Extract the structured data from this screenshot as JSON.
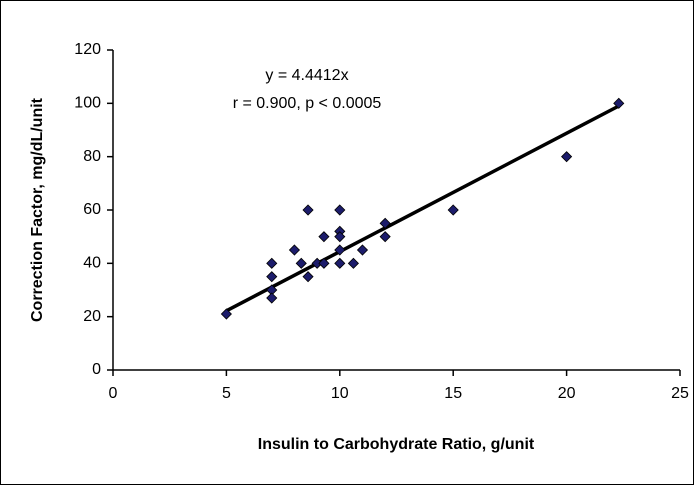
{
  "chart_data": {
    "type": "scatter",
    "x_label": "Insulin to Carbohydrate Ratio, g/unit",
    "y_label": "Correction Factor, mg/dL/unit",
    "annotations": [
      "y = 4.4412x",
      "r = 0.900, p < 0.0005"
    ],
    "xlim": [
      0,
      25
    ],
    "xticks": [
      0,
      5,
      10,
      15,
      20,
      25
    ],
    "ylim": [
      0,
      120
    ],
    "yticks": [
      0,
      20,
      40,
      60,
      80,
      100,
      120
    ],
    "color": "#1c1c6b",
    "x": [
      5,
      7,
      7,
      7,
      7,
      8,
      8.3,
      8.6,
      8.6,
      9,
      9.3,
      9.3,
      10,
      10,
      10,
      10,
      10,
      10.6,
      11,
      12,
      12,
      15,
      20,
      22.3
    ],
    "values": [
      21,
      40,
      35,
      30,
      27,
      45,
      40,
      35,
      60,
      40,
      50,
      40,
      60,
      52,
      50,
      45,
      40,
      40,
      45,
      55,
      50,
      60,
      80,
      100
    ],
    "trendline": {
      "color": "#000000",
      "x": [
        5,
        22.3
      ],
      "values": [
        22.2,
        99
      ]
    }
  }
}
